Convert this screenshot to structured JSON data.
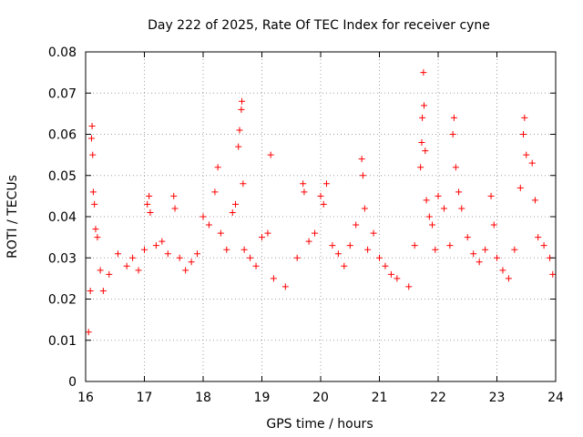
{
  "chart_data": {
    "type": "scatter",
    "title": "Day 222 of 2025, Rate Of TEC Index for receiver cyne",
    "xlabel": "GPS time / hours",
    "ylabel": "ROTI / TECUs",
    "xlim": [
      16,
      24
    ],
    "ylim": [
      0,
      0.08
    ],
    "x_ticks": [
      "16",
      "17",
      "18",
      "19",
      "20",
      "21",
      "22",
      "23",
      "24"
    ],
    "y_ticks": [
      "0",
      "0.01",
      "0.02",
      "0.03",
      "0.04",
      "0.05",
      "0.06",
      "0.07",
      "0.08"
    ],
    "grid": true,
    "marker": "plus",
    "color": "#ff0000",
    "series": [
      {
        "points": [
          [
            16.05,
            0.012
          ],
          [
            16.08,
            0.022
          ],
          [
            16.1,
            0.059
          ],
          [
            16.11,
            0.062
          ],
          [
            16.12,
            0.055
          ],
          [
            16.13,
            0.046
          ],
          [
            16.15,
            0.043
          ],
          [
            16.17,
            0.037
          ],
          [
            16.2,
            0.035
          ],
          [
            16.25,
            0.027
          ],
          [
            16.3,
            0.022
          ],
          [
            16.4,
            0.026
          ],
          [
            16.55,
            0.031
          ],
          [
            16.7,
            0.028
          ],
          [
            16.8,
            0.03
          ],
          [
            16.9,
            0.027
          ],
          [
            17.0,
            0.032
          ],
          [
            17.05,
            0.043
          ],
          [
            17.08,
            0.045
          ],
          [
            17.1,
            0.041
          ],
          [
            17.2,
            0.033
          ],
          [
            17.3,
            0.034
          ],
          [
            17.4,
            0.031
          ],
          [
            17.5,
            0.045
          ],
          [
            17.52,
            0.042
          ],
          [
            17.6,
            0.03
          ],
          [
            17.7,
            0.027
          ],
          [
            17.8,
            0.029
          ],
          [
            17.9,
            0.031
          ],
          [
            18.0,
            0.04
          ],
          [
            18.1,
            0.038
          ],
          [
            18.2,
            0.046
          ],
          [
            18.25,
            0.052
          ],
          [
            18.3,
            0.036
          ],
          [
            18.4,
            0.032
          ],
          [
            18.5,
            0.041
          ],
          [
            18.55,
            0.043
          ],
          [
            18.6,
            0.057
          ],
          [
            18.62,
            0.061
          ],
          [
            18.65,
            0.066
          ],
          [
            18.66,
            0.068
          ],
          [
            18.68,
            0.048
          ],
          [
            18.7,
            0.032
          ],
          [
            18.8,
            0.03
          ],
          [
            18.9,
            0.028
          ],
          [
            19.0,
            0.035
          ],
          [
            19.1,
            0.036
          ],
          [
            19.15,
            0.055
          ],
          [
            19.2,
            0.025
          ],
          [
            19.4,
            0.023
          ],
          [
            19.6,
            0.03
          ],
          [
            19.7,
            0.048
          ],
          [
            19.72,
            0.046
          ],
          [
            19.8,
            0.034
          ],
          [
            19.9,
            0.036
          ],
          [
            20.0,
            0.045
          ],
          [
            20.05,
            0.043
          ],
          [
            20.1,
            0.048
          ],
          [
            20.2,
            0.033
          ],
          [
            20.3,
            0.031
          ],
          [
            20.4,
            0.028
          ],
          [
            20.5,
            0.033
          ],
          [
            20.6,
            0.038
          ],
          [
            20.7,
            0.054
          ],
          [
            20.72,
            0.05
          ],
          [
            20.75,
            0.042
          ],
          [
            20.8,
            0.032
          ],
          [
            20.9,
            0.036
          ],
          [
            21.0,
            0.03
          ],
          [
            21.1,
            0.028
          ],
          [
            21.2,
            0.026
          ],
          [
            21.3,
            0.025
          ],
          [
            21.5,
            0.023
          ],
          [
            21.6,
            0.033
          ],
          [
            21.7,
            0.052
          ],
          [
            21.72,
            0.058
          ],
          [
            21.73,
            0.064
          ],
          [
            21.75,
            0.075
          ],
          [
            21.76,
            0.067
          ],
          [
            21.78,
            0.056
          ],
          [
            21.8,
            0.044
          ],
          [
            21.85,
            0.04
          ],
          [
            21.9,
            0.038
          ],
          [
            21.95,
            0.032
          ],
          [
            22.0,
            0.045
          ],
          [
            22.1,
            0.042
          ],
          [
            22.2,
            0.033
          ],
          [
            22.25,
            0.06
          ],
          [
            22.27,
            0.064
          ],
          [
            22.3,
            0.052
          ],
          [
            22.35,
            0.046
          ],
          [
            22.4,
            0.042
          ],
          [
            22.5,
            0.035
          ],
          [
            22.6,
            0.031
          ],
          [
            22.7,
            0.029
          ],
          [
            22.8,
            0.032
          ],
          [
            22.9,
            0.045
          ],
          [
            22.95,
            0.038
          ],
          [
            23.0,
            0.03
          ],
          [
            23.1,
            0.027
          ],
          [
            23.2,
            0.025
          ],
          [
            23.3,
            0.032
          ],
          [
            23.4,
            0.047
          ],
          [
            23.45,
            0.06
          ],
          [
            23.47,
            0.064
          ],
          [
            23.5,
            0.055
          ],
          [
            23.6,
            0.053
          ],
          [
            23.65,
            0.044
          ],
          [
            23.7,
            0.035
          ],
          [
            23.8,
            0.033
          ],
          [
            23.9,
            0.03
          ],
          [
            23.95,
            0.026
          ]
        ]
      }
    ]
  }
}
